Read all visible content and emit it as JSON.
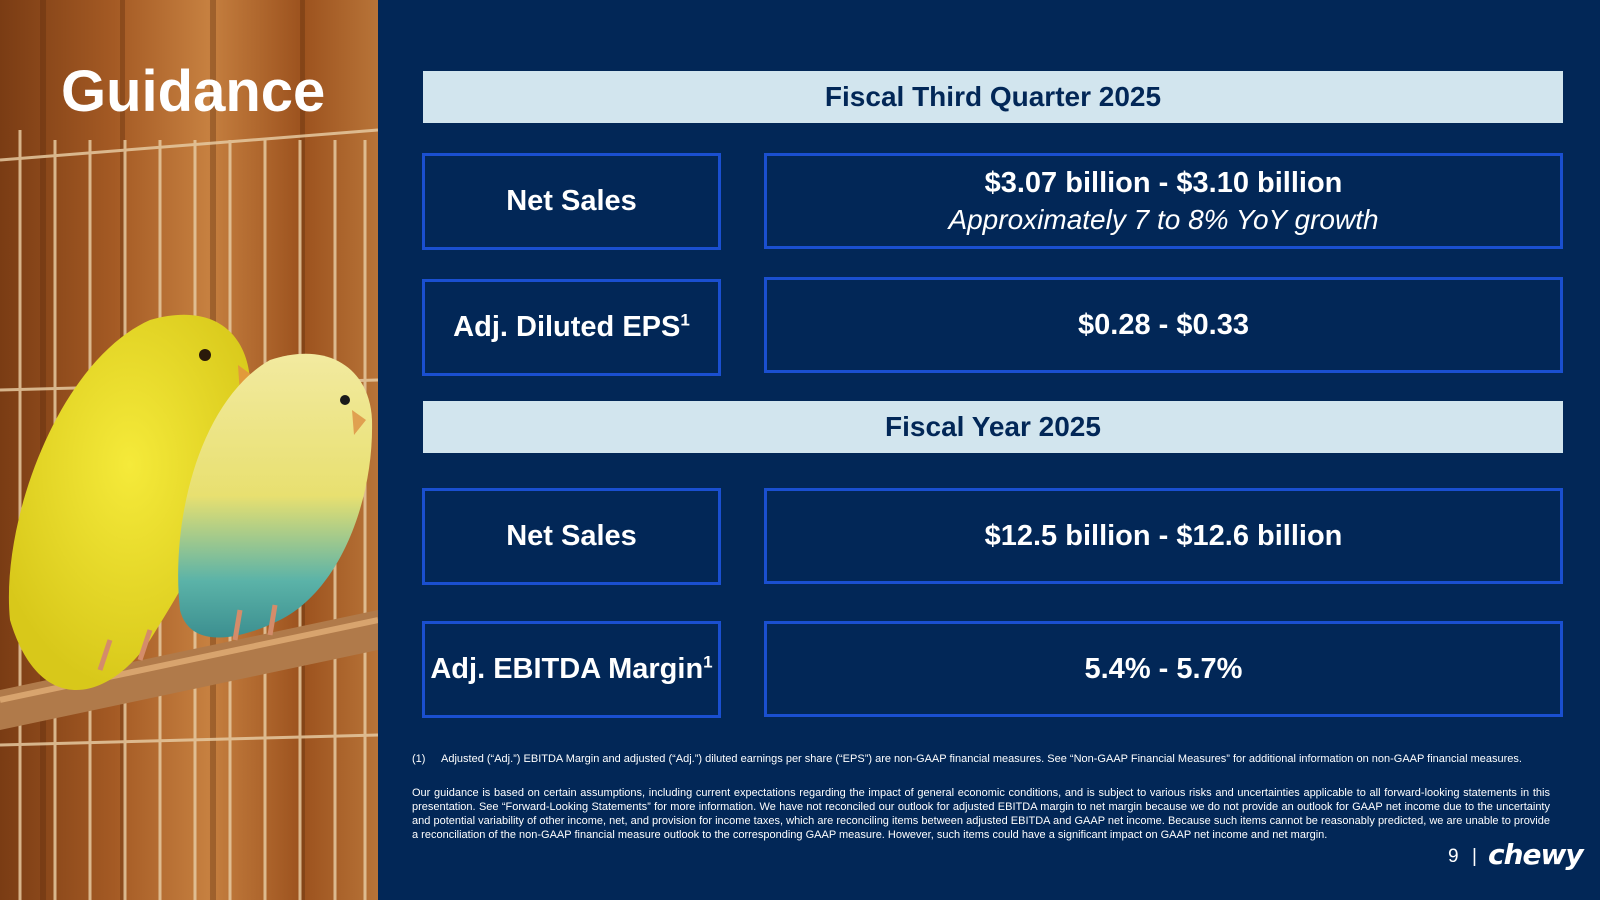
{
  "slide": {
    "title": "Guidance",
    "page_number": "9",
    "separator": "|",
    "logo_text": "chewy"
  },
  "q3": {
    "header": "Fiscal Third Quarter 2025",
    "net_sales_label": "Net Sales",
    "net_sales_value": "$3.07 billion - $3.10 billion",
    "net_sales_sub": "Approximately 7 to 8% YoY growth",
    "eps_label": "Adj. Diluted EPS",
    "eps_sup": "1",
    "eps_value": "$0.28 - $0.33"
  },
  "fy": {
    "header": "Fiscal Year 2025",
    "net_sales_label": "Net Sales",
    "net_sales_value": "$12.5 billion - $12.6 billion",
    "ebitda_label": "Adj. EBITDA Margin",
    "ebitda_sup": "1",
    "ebitda_value": "5.4% - 5.7%"
  },
  "footnotes": {
    "fn1_num": "(1)",
    "fn1_text": "Adjusted (“Adj.”) EBITDA Margin and adjusted (“Adj.”) diluted earnings per share (“EPS”) are non-GAAP financial measures. See “Non-GAAP Financial Measures” for additional information on non-GAAP financial measures.",
    "disclaimer": "Our guidance is based on certain assumptions, including current expectations regarding the impact of general economic conditions, and is subject to various risks and uncertainties applicable to all forward-looking statements in this presentation. See “Forward-Looking Statements” for more information. We have not reconciled our outlook for adjusted EBITDA margin to net margin because we do not provide an outlook for GAAP net income due to the uncertainty and potential variability of other income, net, and provision for income taxes, which are reconciling items between adjusted EBITDA and GAAP net income. Because such items cannot be reasonably predicted, we are unable to provide a reconciliation of the non-GAAP financial measure outlook to the corresponding GAAP measure. However, such items could have a significant impact on GAAP net income and net margin."
  },
  "colors": {
    "background": "#022757",
    "header_fill": "#d2e5ee",
    "box_border": "#1a4fd0"
  }
}
